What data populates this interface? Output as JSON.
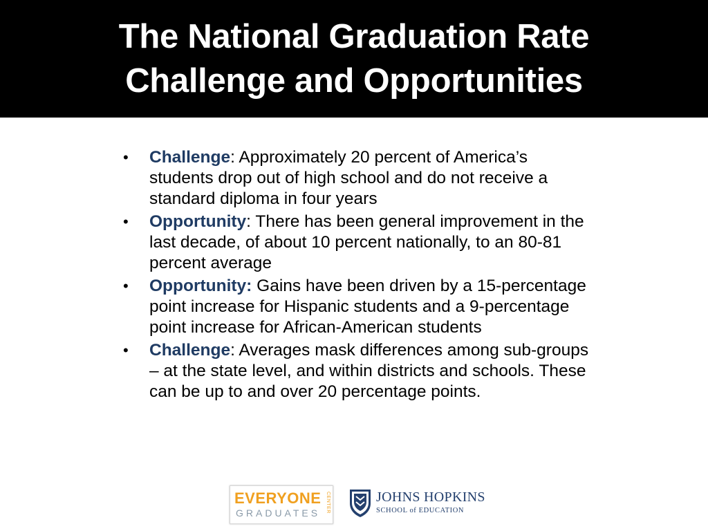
{
  "title": {
    "line1": "The National Graduation Rate",
    "line2": "Challenge and Opportunities"
  },
  "bullets": [
    {
      "keyword": "Challenge",
      "separator": ":",
      "text": " Approximately 20 percent of America’s students drop out of high school and do not receive a standard diploma in four years"
    },
    {
      "keyword": "Opportunity",
      "separator": ":",
      "text": " There has been general improvement in the last decade, of about 10 percent nationally, to an 80-81 percent average"
    },
    {
      "keyword": "Opportunity:",
      "separator": "",
      "text": " Gains have been driven by a 15-percentage point increase for Hispanic students and a 9-percentage point increase for African-American students"
    },
    {
      "keyword": "Challenge",
      "separator": ":",
      "text": " Averages mask differences among sub-groups – at the state level, and within districts and schools. These can be up to and over 20 percentage points."
    }
  ],
  "logos": {
    "everyone_graduates": {
      "top": "EVERYONE",
      "bottom": "GRADUATES",
      "side": "CENTER"
    },
    "johns_hopkins": {
      "name": "JOHNS HOPKINS",
      "school": "SCHOOL of EDUCATION"
    }
  },
  "colors": {
    "title_bg": "#000000",
    "title_text": "#ffffff",
    "keyword": "#1f3b63",
    "everyone_orange": "#f0a020",
    "jhu_blue": "#24406e"
  }
}
